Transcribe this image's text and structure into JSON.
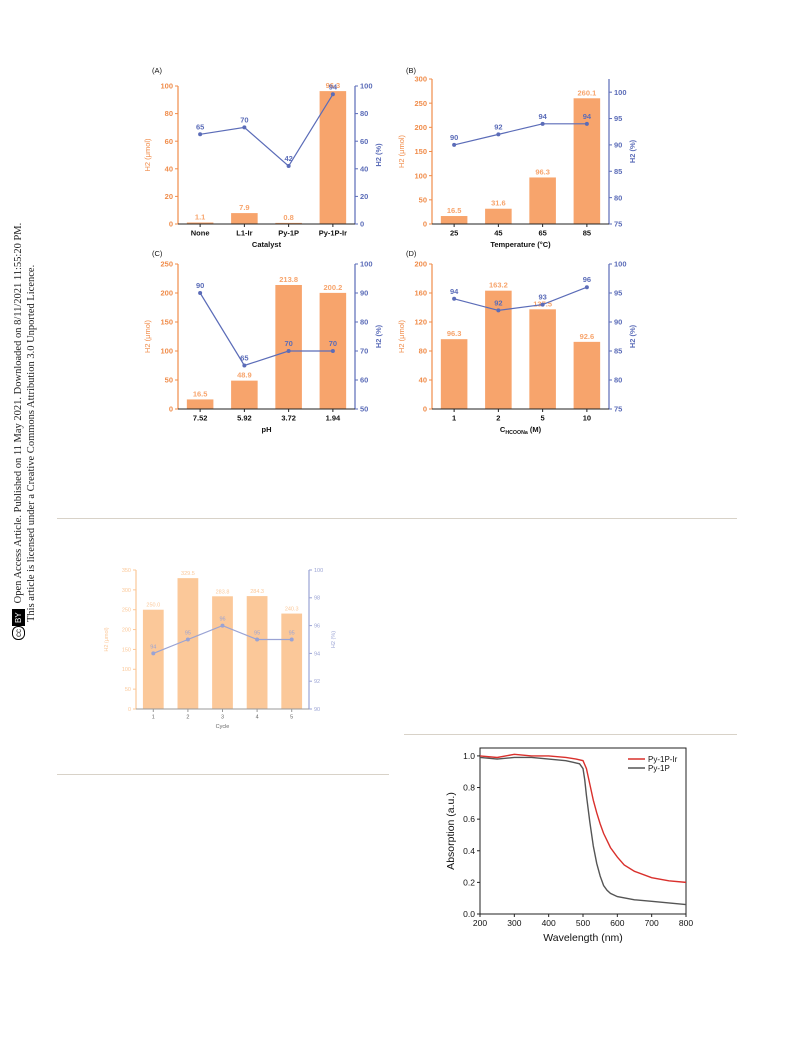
{
  "sidebar": {
    "badge_cc": "cc",
    "badge_by": "BY",
    "line1": "Open Access Article. Published on 11 May 2021. Downloaded on 8/11/2021 11:55:20 PM.",
    "line2": "This article is licensed under a Creative Commons Attribution 3.0 Unported Licence."
  },
  "colors": {
    "bar": "#f7a46c",
    "bar_axis": "#f08c4a",
    "line": "#5b6cb8",
    "light_bar": "#fbc899",
    "light_line": "#9aa3d4",
    "red": "#d9302c",
    "gray": "#555555"
  },
  "chart_data": [
    {
      "type": "bar",
      "panel": "(A)",
      "xlabel": "Catalyst",
      "ylabel": "H2 (μmol)",
      "y2label": "H2 (%)",
      "categories": [
        "None",
        "L1-Ir",
        "Py-1P",
        "Py-1P-Ir"
      ],
      "series": [
        {
          "kind": "bar",
          "values": [
            1.1,
            7.9,
            0.8,
            96.3
          ],
          "labels": [
            "1.1",
            "7.9",
            "0.8",
            "96.3"
          ]
        },
        {
          "kind": "line",
          "axis": "right",
          "values": [
            65,
            70,
            42,
            94
          ],
          "labels": [
            "65",
            "70",
            "42",
            "94"
          ]
        }
      ],
      "ylim": [
        0,
        100
      ],
      "yticks": [
        0,
        20,
        40,
        60,
        80,
        100
      ],
      "y2lim": [
        0,
        100
      ],
      "y2ticks": [
        0,
        20,
        40,
        60,
        80,
        100
      ]
    },
    {
      "type": "bar",
      "panel": "(B)",
      "xlabel": "Temperature (°C)",
      "ylabel": "H2 (μmol)",
      "y2label": "H2 (%)",
      "categories": [
        "25",
        "45",
        "65",
        "85"
      ],
      "series": [
        {
          "kind": "bar",
          "values": [
            16.5,
            31.6,
            96.3,
            260.1
          ],
          "labels": [
            "16.5",
            "31.6",
            "96.3",
            "260.1"
          ]
        },
        {
          "kind": "line",
          "axis": "right",
          "values": [
            90,
            92,
            94,
            94
          ],
          "labels": [
            "90",
            "92",
            "94",
            "94"
          ]
        }
      ],
      "ylim": [
        0,
        300
      ],
      "yticks": [
        0,
        50,
        100,
        150,
        200,
        250,
        300
      ],
      "y2lim": [
        75,
        102.5
      ],
      "y2ticks": [
        75,
        80,
        85,
        90,
        95,
        100
      ]
    },
    {
      "type": "bar",
      "panel": "(C)",
      "xlabel": "pH",
      "ylabel": "H2 (μmol)",
      "y2label": "H2 (%)",
      "categories": [
        "7.52",
        "5.92",
        "3.72",
        "1.94"
      ],
      "series": [
        {
          "kind": "bar",
          "values": [
            16.5,
            48.9,
            213.8,
            200.2
          ],
          "labels": [
            "16.5",
            "48.9",
            "213.8",
            "200.2"
          ]
        },
        {
          "kind": "line",
          "axis": "right",
          "values": [
            90,
            65,
            70,
            70
          ],
          "labels": [
            "90",
            "65",
            "70",
            "70"
          ]
        }
      ],
      "ylim": [
        0,
        250
      ],
      "yticks": [
        0,
        50,
        100,
        150,
        200,
        250
      ],
      "y2lim": [
        50,
        100
      ],
      "y2ticks": [
        50,
        60,
        70,
        80,
        90,
        100
      ]
    },
    {
      "type": "bar",
      "panel": "(D)",
      "xlabel": "CHCOONa (M)",
      "ylabel": "H2 (μmol)",
      "y2label": "H2 (%)",
      "categories": [
        "1",
        "2",
        "5",
        "10"
      ],
      "series": [
        {
          "kind": "bar",
          "values": [
            96.3,
            163.2,
            137.5,
            92.6
          ],
          "labels": [
            "96.3",
            "163.2",
            "137.5",
            "92.6"
          ]
        },
        {
          "kind": "line",
          "axis": "right",
          "values": [
            94,
            92,
            93,
            96
          ],
          "labels": [
            "94",
            "92",
            "93",
            "96"
          ]
        }
      ],
      "ylim": [
        0,
        200
      ],
      "yticks": [
        0,
        40,
        80,
        120,
        160,
        200
      ],
      "y2lim": [
        75,
        100
      ],
      "y2ticks": [
        75,
        80,
        85,
        90,
        95,
        100
      ]
    },
    {
      "type": "bar",
      "panel": "",
      "xlabel": "Cycle",
      "ylabel": "H2 (μmol)",
      "y2label": "H2 (%)",
      "categories": [
        "1",
        "2",
        "3",
        "4",
        "5"
      ],
      "series": [
        {
          "kind": "bar",
          "values": [
            250.0,
            329.5,
            283.8,
            284.3,
            240.3
          ],
          "labels": [
            "250.0",
            "329.5",
            "283.8",
            "284.3",
            "240.3"
          ]
        },
        {
          "kind": "line",
          "axis": "right",
          "values": [
            94,
            95,
            96,
            95,
            95
          ],
          "labels": [
            "94",
            "95",
            "96",
            "95",
            "95"
          ]
        }
      ],
      "ylim": [
        0,
        350
      ],
      "yticks": [
        0,
        50,
        100,
        150,
        200,
        250,
        300,
        350
      ],
      "y2lim": [
        90,
        100
      ],
      "y2ticks": [
        90,
        92,
        94,
        96,
        98,
        100
      ]
    },
    {
      "type": "line",
      "panel": "",
      "xlabel": "Wavelength (nm)",
      "ylabel": "Absorption (a.u.)",
      "xlim": [
        200,
        800
      ],
      "xticks": [
        200,
        300,
        400,
        500,
        600,
        700,
        800
      ],
      "ylim": [
        0,
        1.05
      ],
      "yticks": [
        0.0,
        0.2,
        0.4,
        0.6,
        0.8,
        1.0
      ],
      "legend": "top-right",
      "series": [
        {
          "name": "Py-1P-Ir",
          "color": "#d9302c",
          "x": [
            200,
            250,
            300,
            350,
            400,
            450,
            480,
            500,
            510,
            520,
            530,
            540,
            550,
            560,
            580,
            600,
            620,
            650,
            700,
            750,
            800
          ],
          "y": [
            1.0,
            0.99,
            1.01,
            1.0,
            1.0,
            0.99,
            0.98,
            0.97,
            0.92,
            0.82,
            0.72,
            0.64,
            0.57,
            0.51,
            0.42,
            0.36,
            0.31,
            0.27,
            0.23,
            0.21,
            0.2
          ]
        },
        {
          "name": "Py-1P",
          "color": "#555555",
          "x": [
            200,
            250,
            300,
            350,
            400,
            450,
            470,
            490,
            500,
            505,
            510,
            520,
            530,
            540,
            550,
            560,
            570,
            580,
            600,
            650,
            700,
            750,
            800
          ],
          "y": [
            0.99,
            0.98,
            0.99,
            0.99,
            0.98,
            0.97,
            0.96,
            0.95,
            0.92,
            0.85,
            0.75,
            0.58,
            0.43,
            0.32,
            0.24,
            0.18,
            0.15,
            0.13,
            0.11,
            0.09,
            0.08,
            0.07,
            0.06
          ]
        }
      ]
    }
  ]
}
